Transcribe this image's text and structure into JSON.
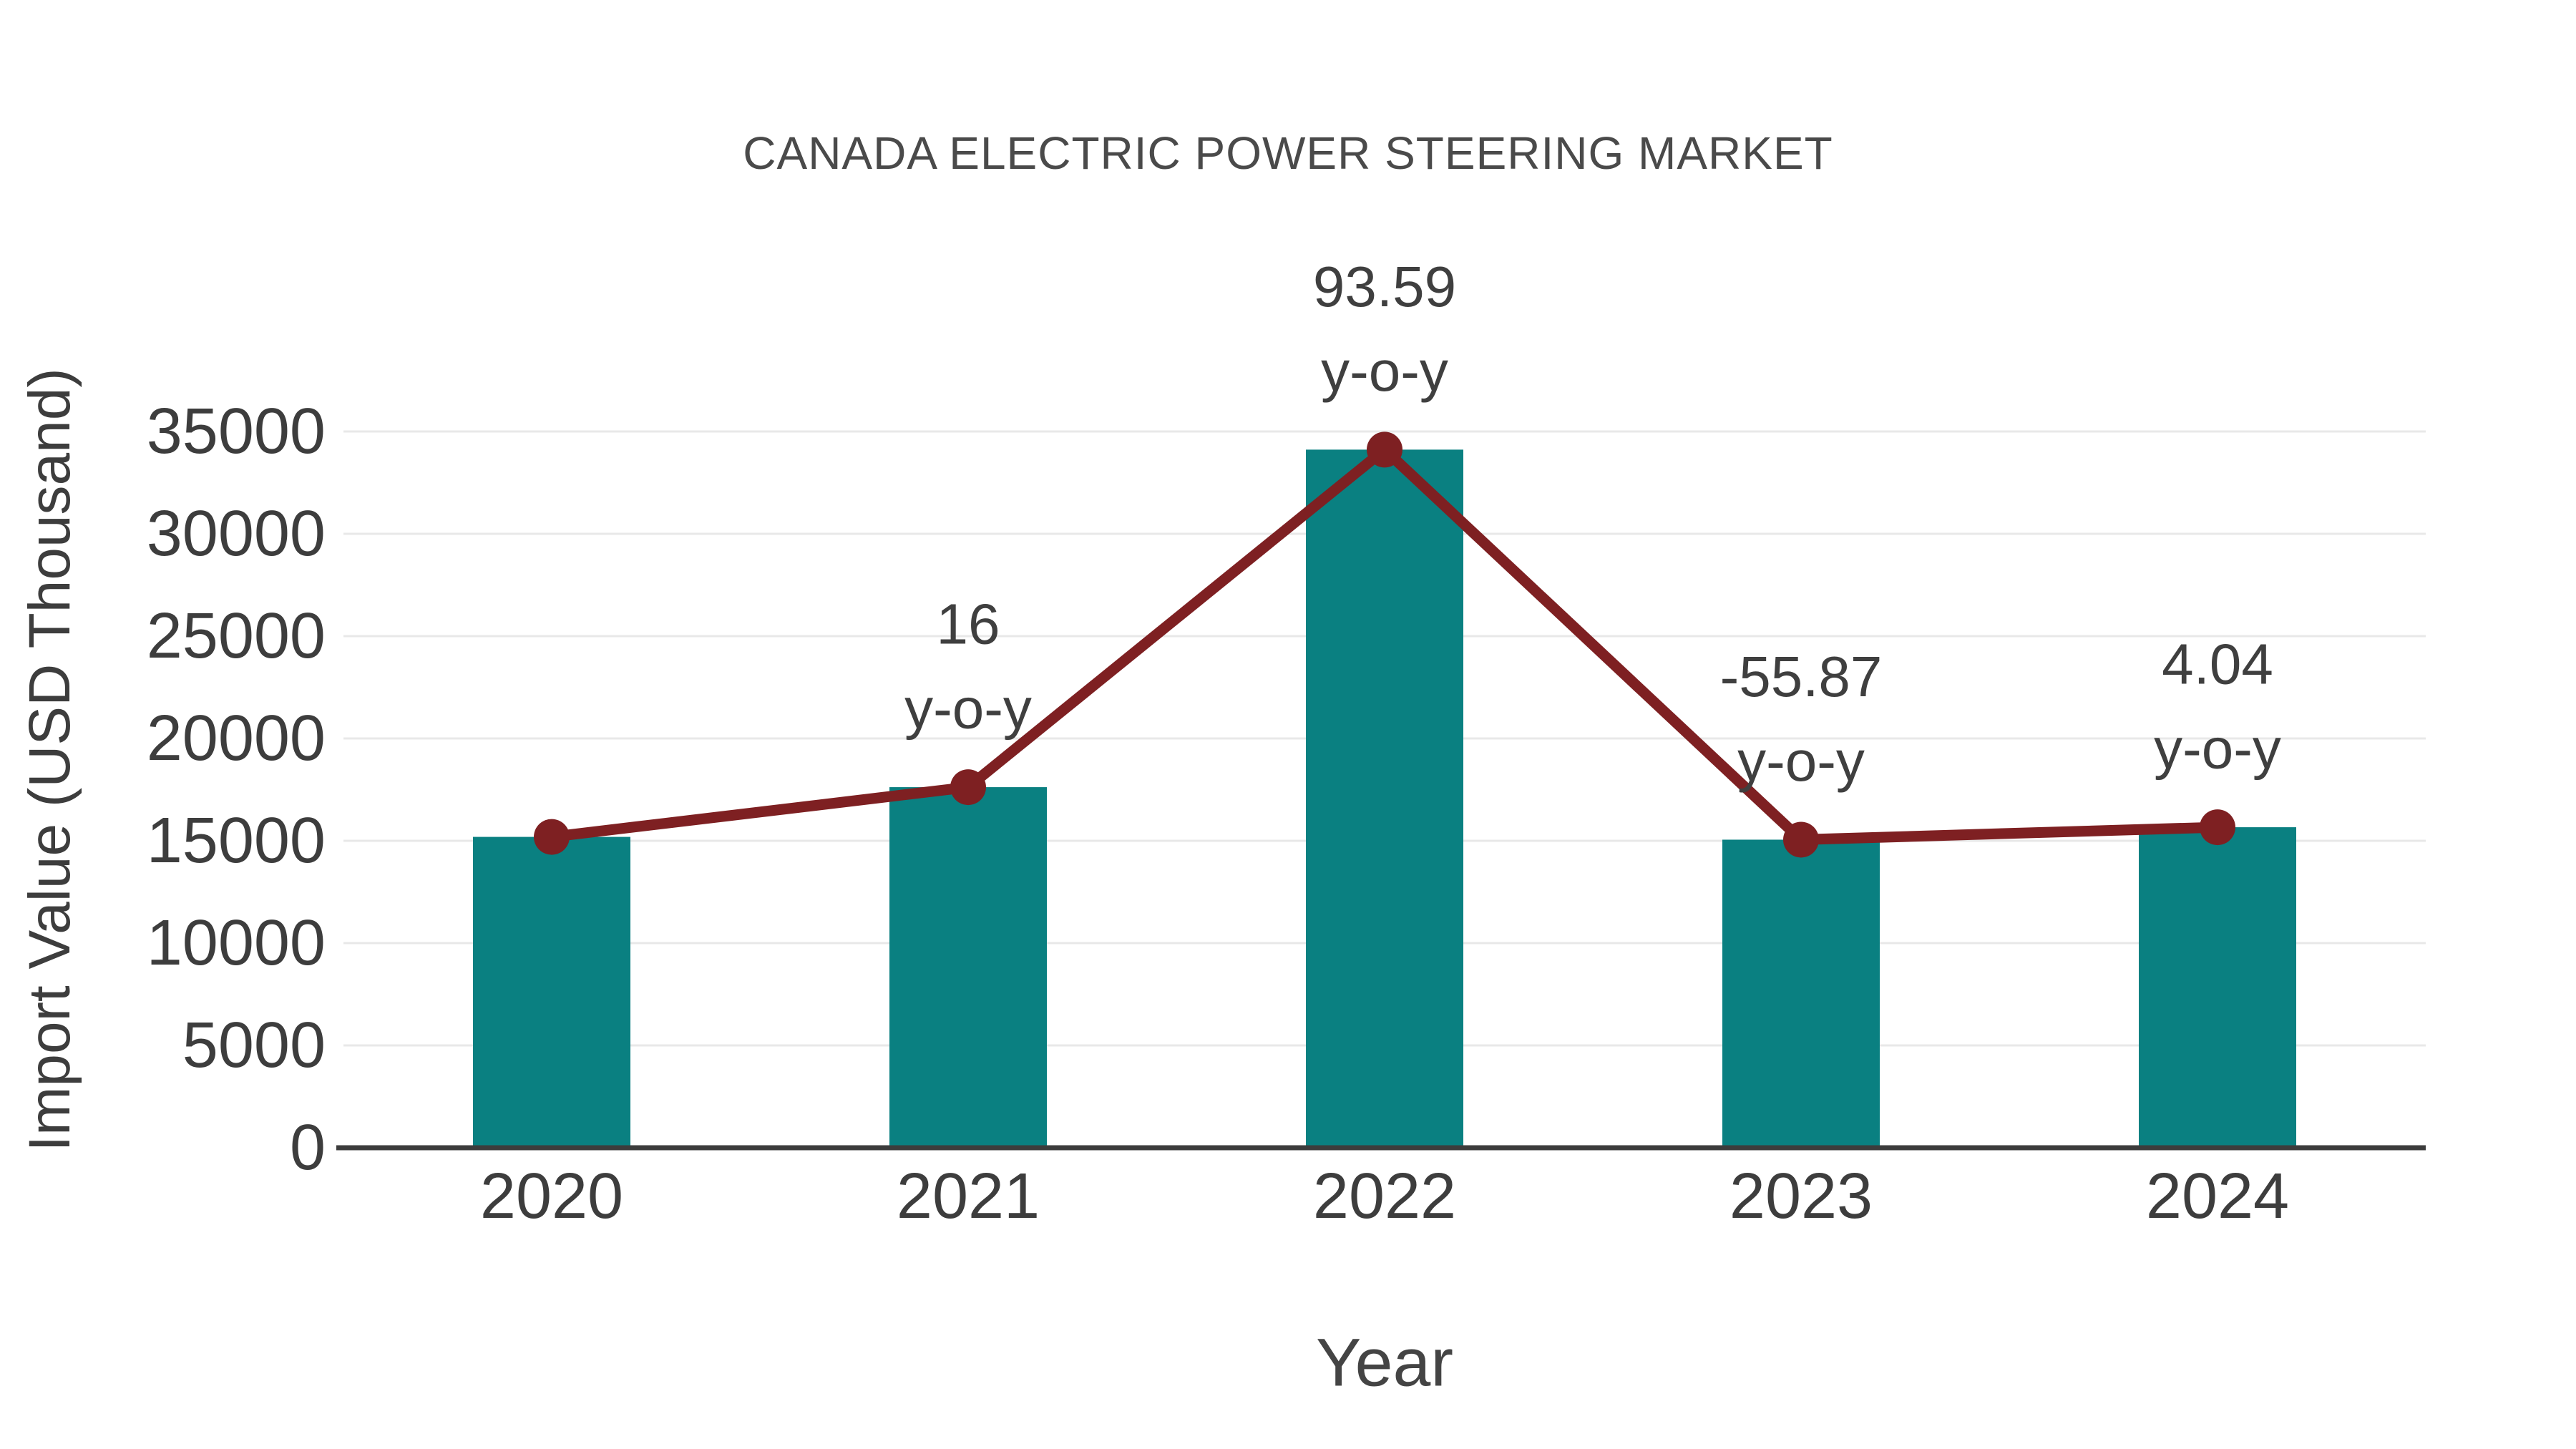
{
  "title": "CANADA ELECTRIC POWER STEERING MARKET",
  "colors": {
    "bar": "#0a8081",
    "line": "#7e2022",
    "marker": "#7e2022",
    "grid": "#e8e8e8",
    "axis": "#3c3c3c",
    "tick_text": "#3d3d3d",
    "annotation_text": "#3f3f3f",
    "title_text": "#4a4a4a"
  },
  "chart_data": {
    "type": "bar",
    "title": "CANADA ELECTRIC POWER STEERING MARKET",
    "xlabel": "Year",
    "ylabel": "Import Value (USD Thousand)",
    "categories": [
      "2020",
      "2021",
      "2022",
      "2023",
      "2024"
    ],
    "series": [
      {
        "name": "Import Value (USD Thousand)",
        "type": "bar",
        "values": [
          15190,
          17620,
          34113,
          15054,
          15662
        ]
      },
      {
        "name": "y-o-y change marker line",
        "type": "line",
        "values": [
          15190,
          17620,
          34113,
          15054,
          15662
        ]
      }
    ],
    "annotations": [
      {
        "category": "2021",
        "value_label": "16",
        "suffix_label": "y-o-y"
      },
      {
        "category": "2022",
        "value_label": "93.59",
        "suffix_label": "y-o-y"
      },
      {
        "category": "2023",
        "value_label": "-55.87",
        "suffix_label": "y-o-y"
      },
      {
        "category": "2024",
        "value_label": "4.04",
        "suffix_label": "y-o-y"
      }
    ],
    "yticks": [
      0,
      5000,
      10000,
      15000,
      20000,
      25000,
      30000,
      35000
    ],
    "ylim": [
      0,
      37000
    ],
    "grid": true,
    "legend_position": "none"
  }
}
